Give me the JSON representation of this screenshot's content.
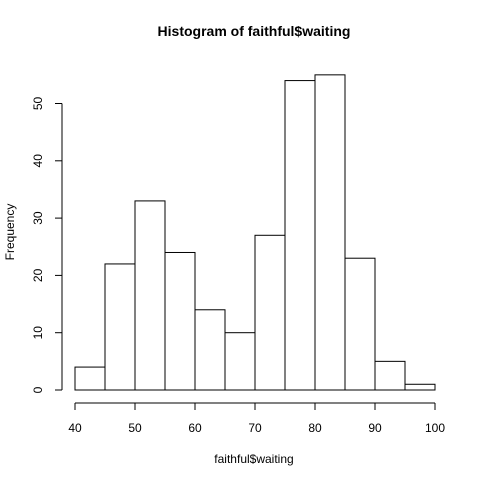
{
  "chart_data": {
    "type": "bar",
    "title": "Histogram of faithful$waiting",
    "xlabel": "faithful$waiting",
    "ylabel": "Frequency",
    "bins": [
      {
        "from": 40,
        "to": 45,
        "count": 4
      },
      {
        "from": 45,
        "to": 50,
        "count": 22
      },
      {
        "from": 50,
        "to": 55,
        "count": 33
      },
      {
        "from": 55,
        "to": 60,
        "count": 24
      },
      {
        "from": 60,
        "to": 65,
        "count": 14
      },
      {
        "from": 65,
        "to": 70,
        "count": 10
      },
      {
        "from": 70,
        "to": 75,
        "count": 27
      },
      {
        "from": 75,
        "to": 80,
        "count": 54
      },
      {
        "from": 80,
        "to": 85,
        "count": 55
      },
      {
        "from": 85,
        "to": 90,
        "count": 23
      },
      {
        "from": 90,
        "to": 95,
        "count": 5
      },
      {
        "from": 95,
        "to": 100,
        "count": 1
      }
    ],
    "xlim": [
      40,
      100
    ],
    "ylim": [
      0,
      55
    ],
    "xticks": [
      40,
      50,
      60,
      70,
      80,
      90,
      100
    ],
    "yticks": [
      0,
      10,
      20,
      30,
      40,
      50
    ],
    "grid": false,
    "legend": "none"
  }
}
